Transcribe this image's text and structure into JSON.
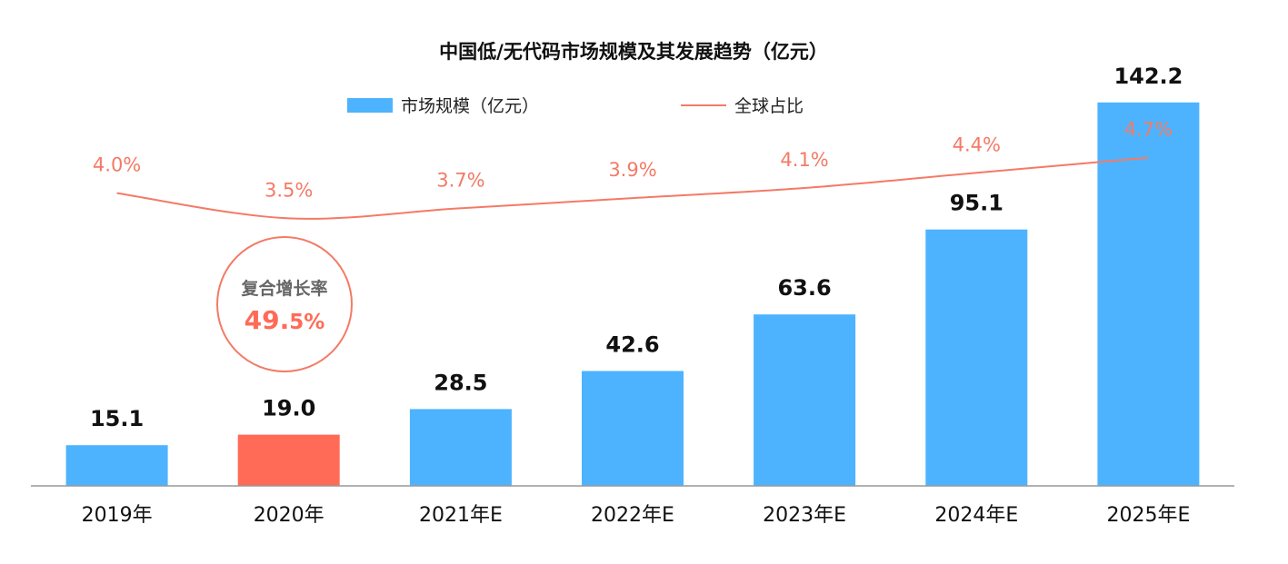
{
  "chart_data": {
    "type": "bar",
    "title": "中国低/无代码市场规模及其发展趋势（亿元）",
    "categories": [
      "2019年",
      "2020年",
      "2021年E",
      "2022年E",
      "2023年E",
      "2024年E",
      "2025年E"
    ],
    "series": [
      {
        "name": "市场规模（亿元）",
        "type": "bar",
        "values": [
          15.1,
          19.0,
          28.5,
          42.6,
          63.6,
          95.1,
          142.2
        ],
        "value_labels": [
          "15.1",
          "19.0",
          "28.5",
          "42.6",
          "63.6",
          "95.1",
          "142.2"
        ],
        "color": "#4db3ff",
        "highlight_index": 1,
        "highlight_color": "#ff6b57"
      },
      {
        "name": "全球占比",
        "type": "line",
        "values": [
          4.0,
          3.5,
          3.7,
          3.9,
          4.1,
          4.4,
          4.7
        ],
        "value_labels": [
          "4.0%",
          "3.5%",
          "3.7%",
          "3.9%",
          "4.1%",
          "4.4%",
          "4.7%"
        ],
        "unit": "%",
        "color": "#f47a66"
      }
    ],
    "ylim": [
      0,
      160
    ],
    "xlabel": "",
    "ylabel": "",
    "grid": false,
    "legend": "top-center",
    "annotation": {
      "label": "复合增长率",
      "value_main": "49.",
      "value_small": "5%"
    },
    "colors": {
      "axis": "#999999",
      "text": "#111111",
      "annotation_text": "#666666",
      "annotation_value": "#ff6b57",
      "annotation_circle": "#f47a66"
    }
  }
}
